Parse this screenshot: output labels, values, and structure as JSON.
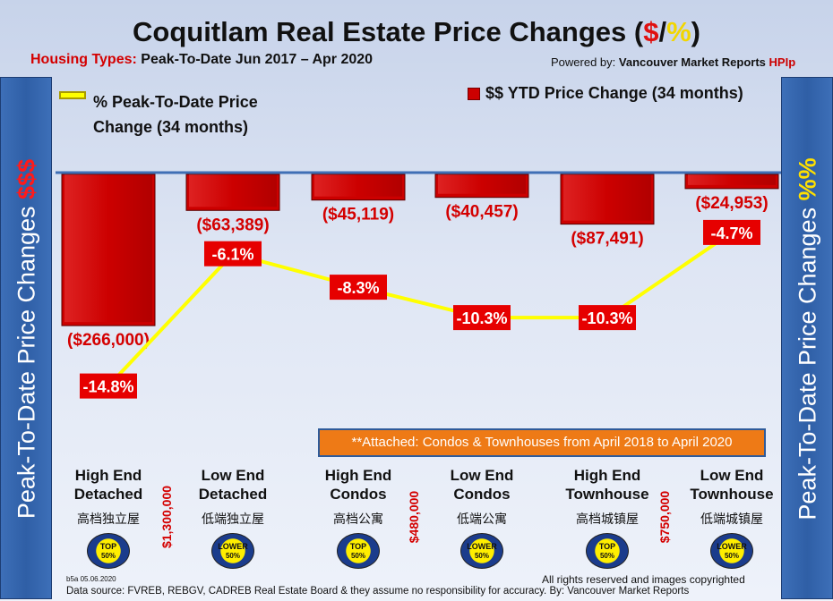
{
  "title": {
    "main": "Coquitlam Real Estate Price Changes (",
    "dollar": "$",
    "slash": "/",
    "pct": "%",
    "close": ")"
  },
  "subtitle": {
    "label": "Housing Types:",
    "range": "Peak-To-Date Jun 2017 – Apr 2020"
  },
  "powered": {
    "prefix": "Powered by:",
    "name": "Vancouver Market Reports",
    "brand": "HPIp"
  },
  "side_left": {
    "text": "Peak-To-Date Price Changes",
    "highlight": "$$$"
  },
  "side_right": {
    "text": "Peak-To-Date  Price  Changes",
    "highlight": "%%"
  },
  "legend": {
    "line": "% Peak-To-Date Price Change (34 months)",
    "bar": "$$ YTD Price Change (34 months)"
  },
  "colors": {
    "bar": "#cc0000",
    "line": "#ffff00",
    "label_bg": "#e60000",
    "note_bg": "#ee7a16"
  },
  "chart_data": {
    "type": "bar+line",
    "categories": [
      "High End Detached",
      "Low End Detached",
      "High End Condos",
      "Low End Condos",
      "High End Townhouse",
      "Low End Townhouse"
    ],
    "series": [
      {
        "name": "$$ YTD Price Change (34 months)",
        "type": "bar",
        "values": [
          -266000,
          -63389,
          -45119,
          -40457,
          -87491,
          -24953
        ],
        "labels": [
          "($266,000)",
          "($63,389)",
          "($45,119)",
          "($40,457)",
          "($87,491)",
          "($24,953)"
        ]
      },
      {
        "name": "% Peak-To-Date Price Change (34 months)",
        "type": "line",
        "values": [
          -14.8,
          -6.1,
          -8.3,
          -10.3,
          -10.3,
          -4.7
        ],
        "labels": [
          "-14.8%",
          "-6.1%",
          "-8.3%",
          "-10.3%",
          "-10.3%",
          "-4.7%"
        ]
      }
    ],
    "bar_ylim": [
      -280000,
      0
    ],
    "line_ylim": [
      -20,
      0
    ]
  },
  "note": "**Attached: Condos & Townhouses from April 2018 to April 2020",
  "categories_display": [
    {
      "line1": "High End",
      "line2": "Detached",
      "cn": "高档独立屋",
      "badge1": "TOP",
      "badge2": "50%",
      "badge_type": "top"
    },
    {
      "line1": "Low End",
      "line2": "Detached",
      "cn": "低端独立屋",
      "badge1": "LOWER",
      "badge2": "50%",
      "badge_type": "lower"
    },
    {
      "line1": "High End",
      "line2": "Condos",
      "cn": "高档公寓",
      "badge1": "TOP",
      "badge2": "50%",
      "badge_type": "top"
    },
    {
      "line1": "Low End",
      "line2": "Condos",
      "cn": "低端公寓",
      "badge1": "LOWER",
      "badge2": "50%",
      "badge_type": "lower"
    },
    {
      "line1": "High End",
      "line2": "Townhouse",
      "cn": "高档城镇屋",
      "badge1": "TOP",
      "badge2": "50%",
      "badge_type": "top"
    },
    {
      "line1": "Low End",
      "line2": "Townhouse",
      "cn": "低端城镇屋",
      "badge1": "LOWER",
      "badge2": "50%",
      "badge_type": "lower"
    }
  ],
  "thresholds": [
    "$1,300,000",
    "$480,000",
    "$750,000"
  ],
  "footer": {
    "stamp": "b5a 05.06.2020",
    "rights": "All rights reserved and  images copyrighted",
    "source": "Data source: FVREB, REBGV, CADREB Real Estate Board & they assume no responsibility for accuracy. By: Vancouver Market Reports"
  }
}
